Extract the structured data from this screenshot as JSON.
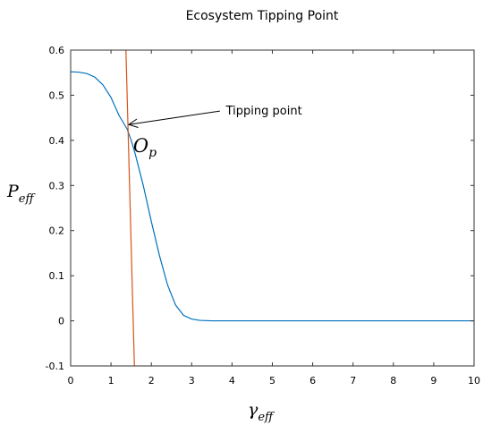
{
  "chart_data": {
    "type": "line",
    "title": "Ecosystem Tipping Point",
    "xlim": [
      0,
      10
    ],
    "ylim": [
      -0.1,
      0.6
    ],
    "x_ticks": [
      0,
      1,
      2,
      3,
      4,
      5,
      6,
      7,
      8,
      9,
      10
    ],
    "y_ticks": [
      -0.1,
      0,
      0.1,
      0.2,
      0.3,
      0.4,
      0.5,
      0.6
    ],
    "x_tick_labels": [
      "0",
      "1",
      "2",
      "3",
      "4",
      "5",
      "6",
      "7",
      "8",
      "9",
      "10"
    ],
    "y_tick_labels": [
      "-0.1",
      "0",
      "0.1",
      "0.2",
      "0.3",
      "0.4",
      "0.5",
      "0.6"
    ],
    "xlabel": {
      "base": "γ",
      "sub": "eff"
    },
    "ylabel": {
      "base": "P",
      "sub": "eff"
    },
    "grid": false,
    "series": [
      {
        "color": "#0072BD",
        "x": [
          0,
          0.2,
          0.4,
          0.6,
          0.8,
          1.0,
          1.2,
          1.4,
          1.5,
          1.6,
          1.8,
          2.0,
          2.2,
          2.4,
          2.6,
          2.8,
          3.0,
          3.2,
          3.5,
          4.0,
          5.0,
          6.0,
          7.0,
          8.0,
          9.0,
          10.0
        ],
        "y": [
          0.552,
          0.551,
          0.548,
          0.54,
          0.523,
          0.495,
          0.455,
          0.425,
          0.4,
          0.37,
          0.3,
          0.22,
          0.145,
          0.08,
          0.035,
          0.012,
          0.004,
          0.001,
          0.0,
          0.0,
          0.0,
          0.0,
          0.0,
          0.0,
          0.0,
          0.0
        ]
      },
      {
        "color": "#D95319",
        "x": [
          1.37,
          1.58
        ],
        "y": [
          0.6,
          -0.1
        ]
      }
    ],
    "annotations": {
      "label": "Tipping point",
      "label_x": 3.85,
      "label_y": 0.465,
      "arrow_from": [
        3.7,
        0.465
      ],
      "arrow_to": [
        1.44,
        0.435
      ],
      "symbol": {
        "base": "O",
        "sub": "p"
      },
      "symbol_x": 1.55,
      "symbol_y": 0.39
    }
  }
}
